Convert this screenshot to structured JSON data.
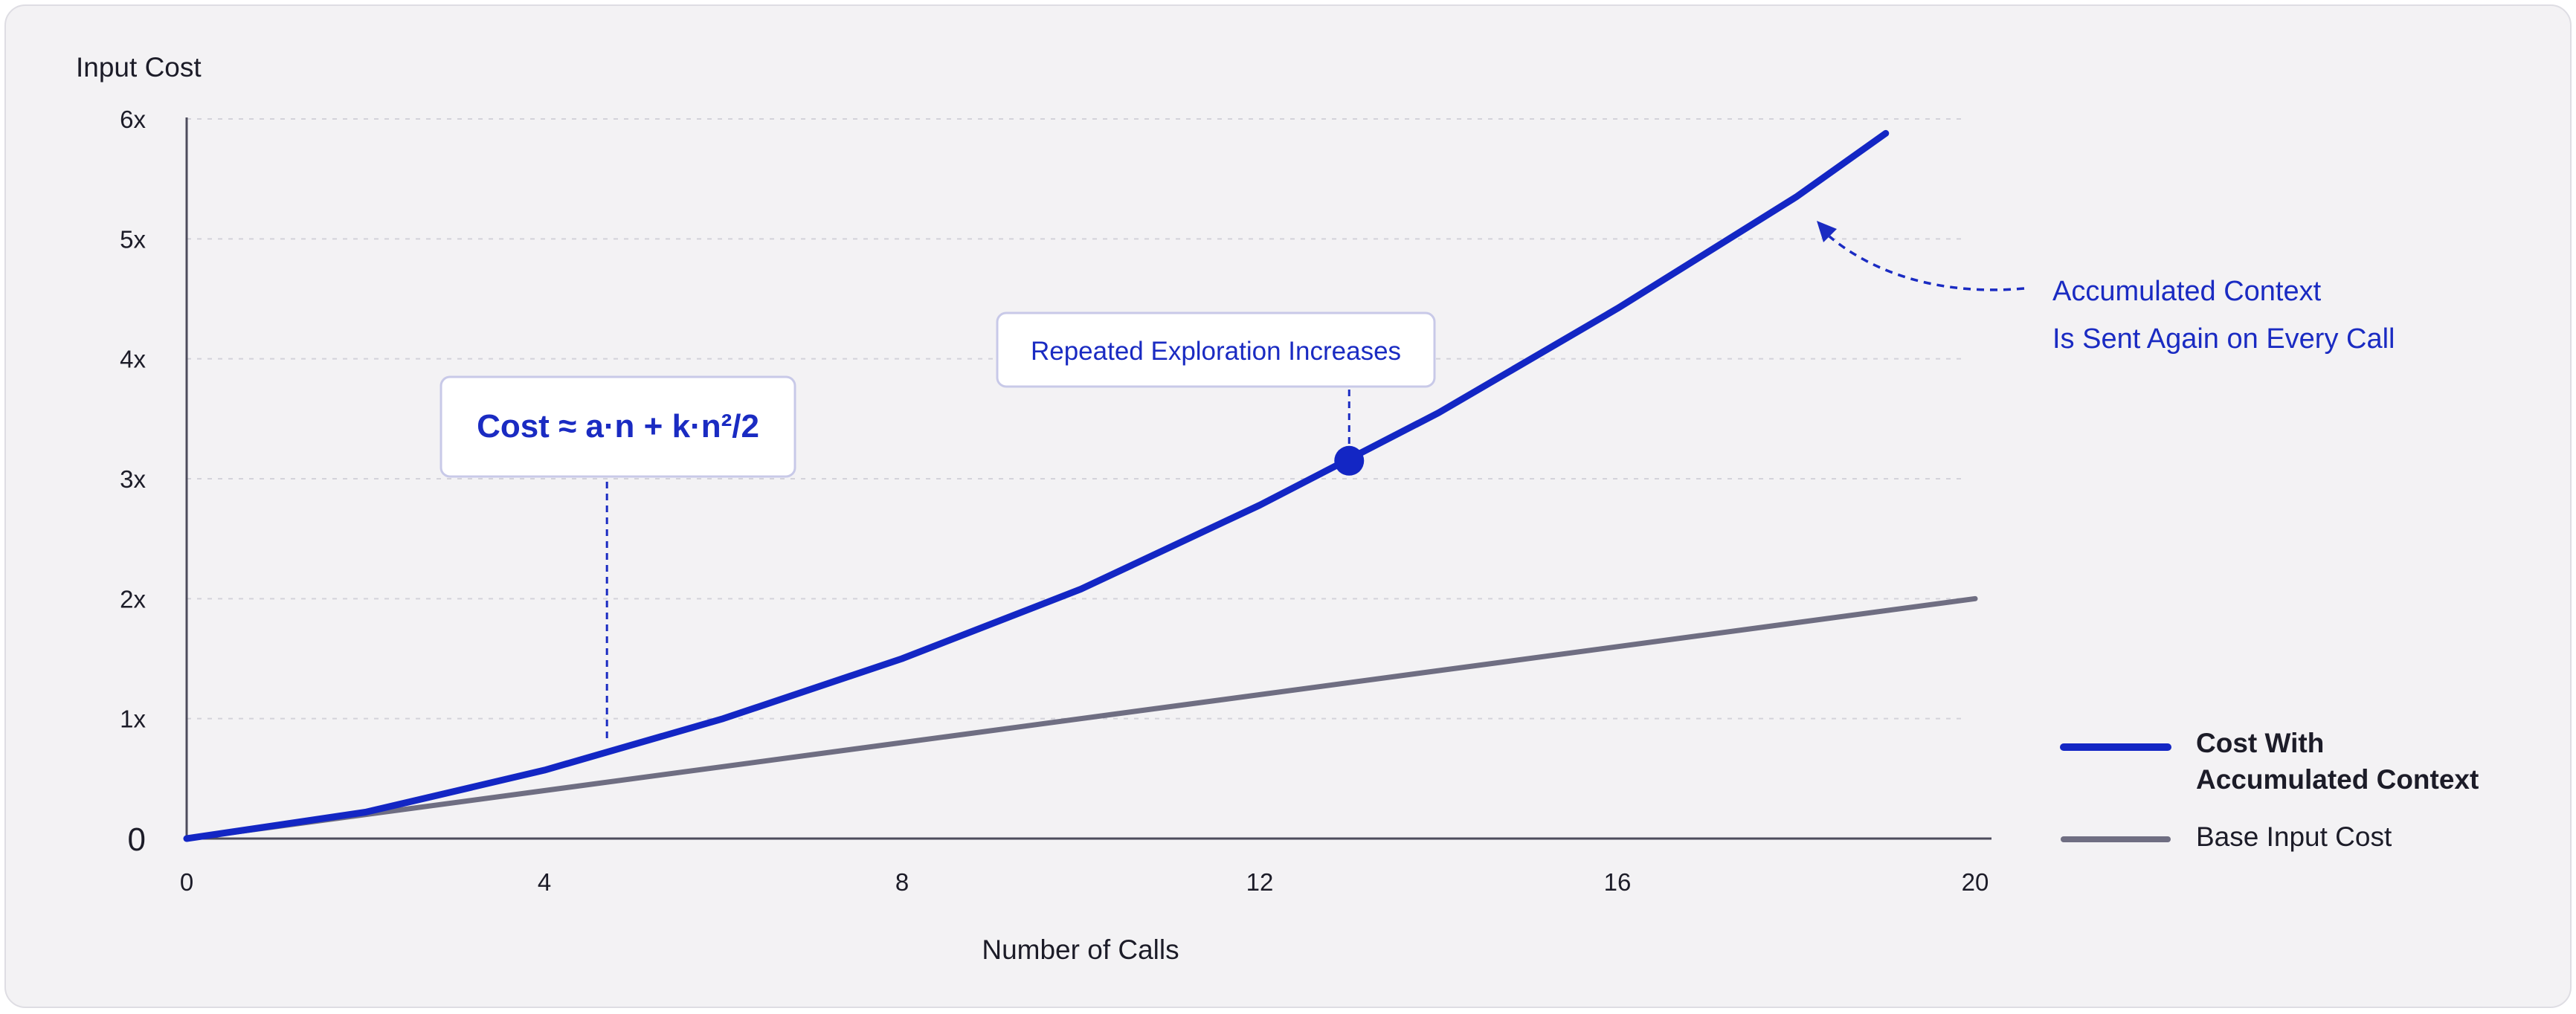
{
  "chart_data": {
    "type": "line",
    "title": "",
    "xlabel": "Number of Calls",
    "ylabel": "Input Cost",
    "xlim": [
      0,
      20
    ],
    "ylim": [
      0,
      6
    ],
    "x_ticks": [
      0,
      4,
      8,
      12,
      16,
      20
    ],
    "x_tick_labels": [
      "0",
      "4",
      "8",
      "12",
      "16",
      "20"
    ],
    "y_ticks": [
      0,
      1,
      2,
      3,
      4,
      5,
      6
    ],
    "y_tick_labels": [
      "0",
      "1x",
      "2x",
      "3x",
      "4x",
      "5x",
      "6x"
    ],
    "grid": "horizontal dashed",
    "legend_position": "right",
    "series": [
      {
        "name": "Cost With Accumulated Context",
        "color": "#1326c4",
        "x": [
          0,
          2,
          4,
          6,
          8,
          10,
          12,
          14,
          16,
          18,
          19
        ],
        "y": [
          0,
          0.22,
          0.57,
          1.0,
          1.5,
          2.08,
          2.78,
          3.55,
          4.42,
          5.35,
          5.88
        ]
      },
      {
        "name": "Base Input Cost",
        "color": "#6f6e82",
        "x": [
          0,
          20
        ],
        "y": [
          0,
          2.0
        ]
      }
    ],
    "highlight_point": {
      "x": 13,
      "y": 3.15
    },
    "annotations": [
      {
        "id": "formula",
        "text": "Cost ≈ a·n + k·n²/2",
        "anchor_x": 4.7,
        "anchor_y": 0.75
      },
      {
        "id": "repeated",
        "text": "Repeated Exploration Increases",
        "anchor_x": 13,
        "anchor_y": 3.15
      },
      {
        "id": "accumulated",
        "lines": [
          "Accumulated Context",
          "Is Sent Again on Every Call"
        ],
        "anchor_x": 18.2,
        "anchor_y": 5.1
      }
    ]
  }
}
